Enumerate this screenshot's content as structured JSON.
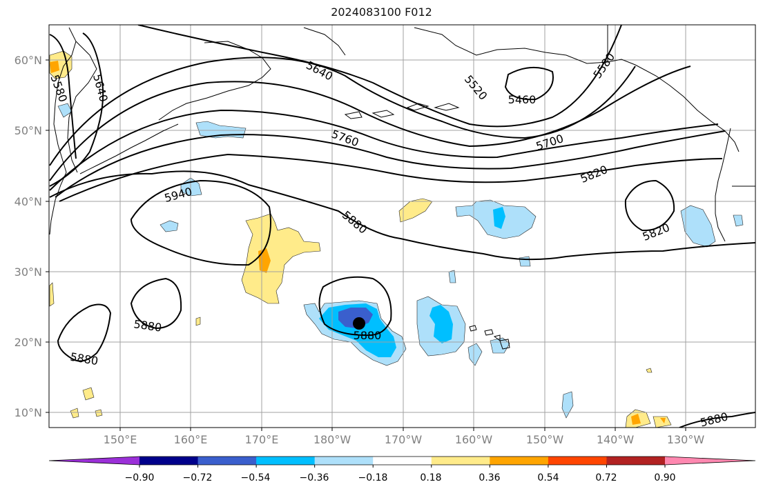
{
  "title": "2024083100 F012",
  "lat_labels": [
    "60°N",
    "50°N",
    "40°N",
    "30°N",
    "20°N",
    "10°N"
  ],
  "lon_labels": [
    "150°E",
    "160°E",
    "170°E",
    "180°W",
    "170°W",
    "160°W",
    "150°W",
    "140°W",
    "130°W"
  ],
  "contour_labels": [
    "5580",
    "5640",
    "5640",
    "5520",
    "5460",
    "5580",
    "5760",
    "5700",
    "5820",
    "5940",
    "5880",
    "5820",
    "5880",
    "5880",
    "5880",
    "5880"
  ],
  "colorbar": {
    "tick_labels": [
      "−0.90",
      "−0.72",
      "−0.54",
      "−0.36",
      "−0.18",
      "0.18",
      "0.36",
      "0.54",
      "0.72",
      "0.90"
    ],
    "colors": [
      "#9b30d8",
      "#00008b",
      "#3a5fcd",
      "#00bfff",
      "#aee0fa",
      "#ffffff",
      "#ffeb8a",
      "#ffa500",
      "#ff4500",
      "#b22222",
      "#ff88b0"
    ]
  },
  "colors": {
    "neg_light": "#aee0fa",
    "neg_mid": "#00bfff",
    "neg_dark": "#3a5fcd",
    "neg_darker": "#00008b",
    "pos_light": "#ffeb8a",
    "pos_mid": "#ffa500",
    "pos_dark": "#ff4500",
    "grid": "#a0a0a0",
    "tick_text": "#808080"
  },
  "marker": "storm-center-dot"
}
